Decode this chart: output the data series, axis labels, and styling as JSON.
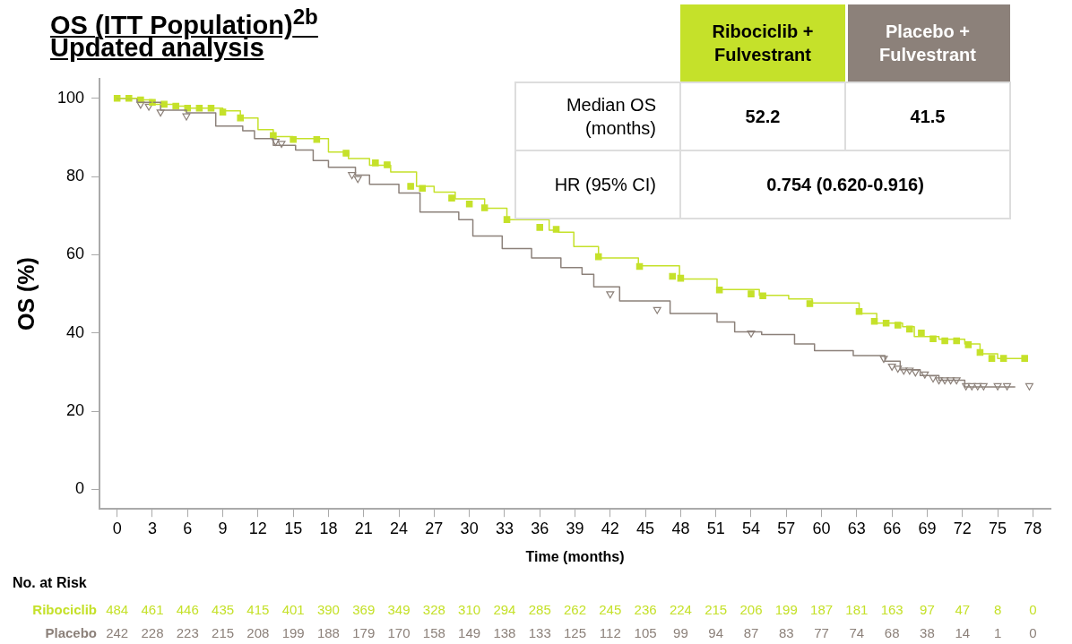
{
  "chart_data": {
    "type": "step",
    "title": "OS (ITT Population)$^{2b}$",
    "subtitle": "Updated analysis",
    "xlabel": "Time (months)",
    "ylabel": "OS (%)",
    "xlim": [
      -1.5,
      79.5
    ],
    "xticks": [
      0,
      3,
      6,
      9,
      12,
      15,
      18,
      21,
      24,
      27,
      30,
      33,
      36,
      39,
      42,
      45,
      48,
      51,
      54,
      57,
      60,
      63,
      66,
      69,
      72,
      75,
      78
    ],
    "ylim": [
      -5,
      105
    ],
    "yticks": [
      0,
      20,
      40,
      60,
      80,
      100
    ],
    "grid": false,
    "series": [
      {
        "color": "#c5e12a",
        "x": [
          0,
          2,
          3,
          5,
          6,
          9,
          10.5,
          12,
          13.3,
          15,
          18,
          19.7,
          21.5,
          23.3,
          25.5,
          27,
          28.8,
          31.3,
          33.2,
          36.8,
          37.6,
          38.9,
          41,
          44.4,
          47.9,
          51.1,
          54.7,
          57.2,
          59.2,
          63.2,
          64.7,
          66.9,
          67.9,
          70,
          72.2,
          73.5,
          75,
          77.5
        ],
        "values": [
          100,
          99.6,
          98.5,
          98,
          97.5,
          96.8,
          95,
          92,
          90.2,
          89.7,
          86.3,
          84.6,
          82.9,
          81.2,
          77.5,
          76,
          74.3,
          71.9,
          69,
          66.3,
          65.8,
          62.1,
          59.2,
          57.2,
          53.8,
          51.1,
          49.6,
          48.7,
          47.7,
          45,
          42.5,
          41.6,
          39.1,
          38.4,
          37.2,
          34.7,
          33.5,
          33.5
        ]
      },
      {
        "color": "#8c817a",
        "x": [
          0,
          1.7,
          3.7,
          5.9,
          8.4,
          10.7,
          11.7,
          13.3,
          15.2,
          16.7,
          18,
          20.3,
          21.5,
          24,
          25.8,
          29.1,
          30.3,
          32.8,
          35.3,
          37.8,
          39.6,
          40.6,
          42.8,
          45.1,
          47.1,
          51.1,
          52.6,
          54.9,
          57.7,
          59.4,
          62.7,
          65.4,
          66.7,
          68.4,
          70,
          72.2,
          76.5
        ],
        "values": [
          100,
          99,
          97,
          96.3,
          92.9,
          91.7,
          89.7,
          88,
          86.8,
          84.1,
          82.4,
          80.4,
          78,
          75.8,
          70.9,
          69,
          64.8,
          61.6,
          59.2,
          56.7,
          55,
          51.8,
          48.2,
          48.2,
          45,
          42.8,
          40.3,
          39.6,
          37.2,
          35.5,
          34.2,
          32.8,
          30.6,
          29.1,
          27.9,
          26.2,
          26.2
        ]
      },
      {
        "type": "scatter",
        "marker": "square",
        "color": "#c5e12a",
        "x": [
          0,
          1,
          2,
          3,
          4,
          5,
          6,
          7,
          8,
          9,
          10.5,
          13.3,
          15,
          17,
          19.5,
          22,
          23,
          25,
          26,
          28.5,
          30,
          31.3,
          33.2,
          36,
          37.4,
          41,
          44.5,
          47.3,
          48,
          51.3,
          54,
          55,
          59,
          63.2,
          64.5,
          65.5,
          66.5,
          67.5,
          68.5,
          69.5,
          70.5,
          71.5,
          72.5,
          73.5,
          74.5,
          75.5,
          77.3
        ],
        "values": [
          100,
          100,
          99.6,
          99,
          98.5,
          98,
          97.5,
          97.5,
          97.5,
          96.5,
          95,
          90.5,
          89.5,
          89.5,
          86,
          83.5,
          83,
          77.5,
          77,
          74.5,
          73,
          72,
          69,
          67,
          66.5,
          59.5,
          57,
          54.5,
          54,
          51,
          50,
          49.5,
          47.5,
          45.5,
          43,
          42.5,
          42,
          41,
          40,
          38.5,
          38,
          38,
          37,
          35,
          33.5,
          33.5,
          33.5
        ]
      },
      {
        "type": "scatter",
        "marker": "triangle",
        "color": "#8c817a",
        "x": [
          2,
          2.7,
          3.7,
          5.9,
          13.5,
          14,
          20,
          20.5,
          42,
          46,
          54,
          65.3,
          66,
          66.5,
          67,
          67.5,
          68,
          68.8,
          69.5,
          70,
          70.5,
          71,
          71.5,
          72.3,
          72.8,
          73.3,
          73.8,
          75,
          75.8,
          77.7
        ],
        "values": [
          98.5,
          98,
          96.5,
          95.5,
          89,
          88.5,
          80.5,
          79.5,
          50,
          46,
          40,
          33.5,
          31.5,
          31,
          30.5,
          30.5,
          30,
          29.5,
          28.5,
          28,
          28,
          28,
          28,
          26.5,
          26.5,
          26.5,
          26.5,
          26.5,
          26.5,
          26.5
        ]
      }
    ],
    "annotations": [
      "No. at Risk",
      "Ribociclib 484 461 446 435 415 401 390 369 349 328 310 294 285 262 245 236 224 215 206 199 187 181 163 97 47 8 0",
      "Placebo 242 228 223 215 208 199 188 179 170 158 149 138 133 125 112 105 99 94 87 83 77 74 68 38 14 1 0",
      "Median OS (months)",
      "52.2",
      "41.5",
      "HR (95% CI)",
      "0.754 (0.620-0.916)",
      "Ribociclib + Fulvestrant",
      "Placebo + Fulvestrant"
    ]
  }
}
